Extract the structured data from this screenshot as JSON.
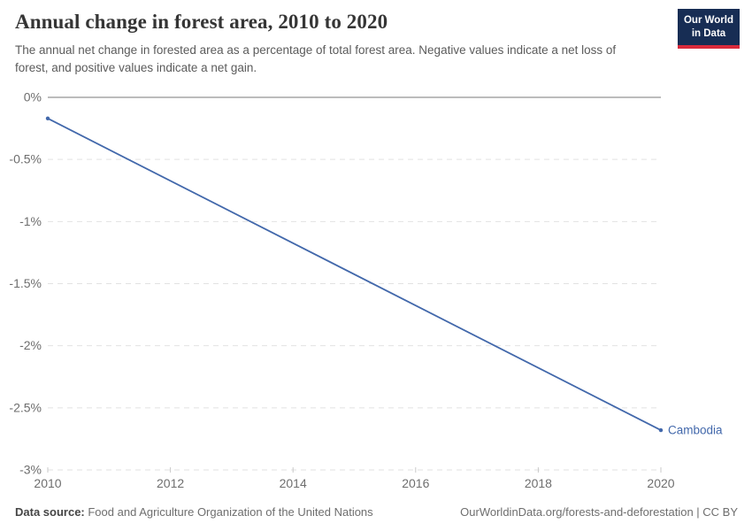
{
  "header": {
    "title": "Annual change in forest area, 2010 to 2020",
    "subtitle": "The annual net change in forested area as a percentage of total forest area. Negative values indicate a net loss of forest, and positive values indicate a net gain."
  },
  "logo": {
    "line1": "Our World",
    "line2": "in Data",
    "background_color": "#172d54",
    "accent_color": "#d92a3b"
  },
  "footer": {
    "datasource_label": "Data source:",
    "datasource_value": " Food and Agriculture Organization of the United Nations",
    "right_text": "OurWorldinData.org/forests-and-deforestation | CC BY"
  },
  "chart_data": {
    "type": "line",
    "title": "Annual change in forest area, 2010 to 2020",
    "xlabel": "",
    "ylabel": "",
    "unit": "%",
    "xlim": [
      2010,
      2020
    ],
    "ylim": [
      -3,
      0
    ],
    "grid": "horizontal dashed, solid line at 0%",
    "legend": "end-of-line entity label",
    "xticks": [
      {
        "value": 2010,
        "label": "2010"
      },
      {
        "value": 2012,
        "label": "2012"
      },
      {
        "value": 2014,
        "label": "2014"
      },
      {
        "value": 2016,
        "label": "2016"
      },
      {
        "value": 2018,
        "label": "2018"
      },
      {
        "value": 2020,
        "label": "2020"
      }
    ],
    "yticks": [
      {
        "value": 0,
        "label": "0%"
      },
      {
        "value": -0.5,
        "label": "-0.5%"
      },
      {
        "value": -1,
        "label": "-1%"
      },
      {
        "value": -1.5,
        "label": "-1.5%"
      },
      {
        "value": -2,
        "label": "-2%"
      },
      {
        "value": -2.5,
        "label": "-2.5%"
      },
      {
        "value": -3,
        "label": "-3%"
      }
    ],
    "series": [
      {
        "name": "Cambodia",
        "color": "#4268ab",
        "points": [
          {
            "x": 2010,
            "y": -0.17
          },
          {
            "x": 2020,
            "y": -2.68
          }
        ]
      }
    ]
  }
}
